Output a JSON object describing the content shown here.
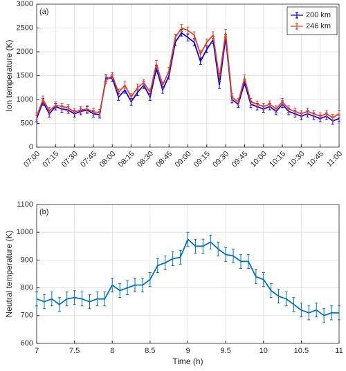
{
  "chart_data": [
    {
      "type": "line",
      "panel_label": "(a)",
      "ylabel": "Ion temperature (K)",
      "x": [
        "07:00",
        "07:05",
        "07:10",
        "07:15",
        "07:20",
        "07:25",
        "07:30",
        "07:35",
        "07:40",
        "07:45",
        "07:50",
        "07:55",
        "08:00",
        "08:05",
        "08:10",
        "08:15",
        "08:20",
        "08:25",
        "08:30",
        "08:35",
        "08:40",
        "08:45",
        "08:50",
        "08:55",
        "09:00",
        "09:05",
        "09:10",
        "09:15",
        "09:20",
        "09:25",
        "09:30",
        "09:35",
        "09:40",
        "09:45",
        "09:50",
        "09:55",
        "10:00",
        "10:05",
        "10:10",
        "10:15",
        "10:20",
        "10:25",
        "10:30",
        "10:35",
        "10:40",
        "10:45",
        "10:50",
        "10:55",
        "11:00"
      ],
      "series": [
        {
          "name": "200 km",
          "color": "#0000ff",
          "error": 70,
          "values": [
            600,
            950,
            700,
            850,
            800,
            780,
            700,
            750,
            780,
            700,
            680,
            1450,
            1450,
            1050,
            1200,
            950,
            1150,
            1300,
            1050,
            1650,
            1200,
            1500,
            2200,
            2400,
            2300,
            2200,
            1800,
            2050,
            2250,
            1300,
            2300,
            1000,
            900,
            1350,
            900,
            850,
            800,
            850,
            750,
            900,
            750,
            700,
            650,
            700,
            650,
            600,
            650,
            550,
            600
          ]
        },
        {
          "name": "246 km",
          "color": "#e8401c",
          "error": 70,
          "values": [
            650,
            1000,
            760,
            880,
            850,
            820,
            740,
            780,
            800,
            740,
            720,
            1400,
            1500,
            1150,
            1300,
            1050,
            1250,
            1350,
            1150,
            1750,
            1300,
            1600,
            2300,
            2500,
            2450,
            2350,
            1950,
            2200,
            2350,
            1450,
            2400,
            1050,
            950,
            1450,
            950,
            900,
            850,
            900,
            800,
            950,
            800,
            750,
            700,
            750,
            700,
            650,
            700,
            620,
            700
          ]
        }
      ],
      "xlim": [
        "07:00",
        "11:00"
      ],
      "xticks": [
        "07:00",
        "07:15",
        "07:30",
        "07:45",
        "08:00",
        "08:15",
        "08:30",
        "08:45",
        "09:00",
        "09:15",
        "09:30",
        "09:45",
        "10:00",
        "10:15",
        "10:30",
        "10:45",
        "11:00"
      ],
      "ylim": [
        0,
        3000
      ],
      "yticks": [
        0,
        500,
        1000,
        1500,
        2000,
        2500,
        3000
      ],
      "grid": true,
      "legend": "upper right"
    },
    {
      "type": "line",
      "panel_label": "(b)",
      "ylabel": "Neutral temperature (K)",
      "xlabel": "Time (h)",
      "x": [
        7,
        7.1,
        7.2,
        7.3,
        7.4,
        7.5,
        7.6,
        7.7,
        7.8,
        7.9,
        8,
        8.1,
        8.2,
        8.3,
        8.4,
        8.5,
        8.6,
        8.7,
        8.8,
        8.9,
        9,
        9.1,
        9.2,
        9.3,
        9.4,
        9.5,
        9.6,
        9.7,
        9.8,
        9.9,
        10,
        10.1,
        10.2,
        10.3,
        10.4,
        10.5,
        10.6,
        10.7,
        10.8,
        10.9,
        11
      ],
      "series": [
        {
          "color": "#0072bd",
          "error": 25,
          "values": [
            760,
            750,
            760,
            740,
            760,
            765,
            760,
            750,
            760,
            760,
            810,
            790,
            800,
            810,
            810,
            830,
            880,
            890,
            905,
            910,
            975,
            950,
            950,
            965,
            940,
            920,
            915,
            895,
            895,
            840,
            830,
            790,
            770,
            760,
            740,
            720,
            710,
            720,
            700,
            710,
            710
          ]
        }
      ],
      "xlim": [
        7,
        11
      ],
      "xticks": [
        7,
        7.5,
        8,
        8.5,
        9,
        9.5,
        10,
        10.5,
        11
      ],
      "ylim": [
        600,
        1100
      ],
      "yticks": [
        600,
        700,
        800,
        900,
        1000,
        1100
      ],
      "grid": true
    }
  ]
}
